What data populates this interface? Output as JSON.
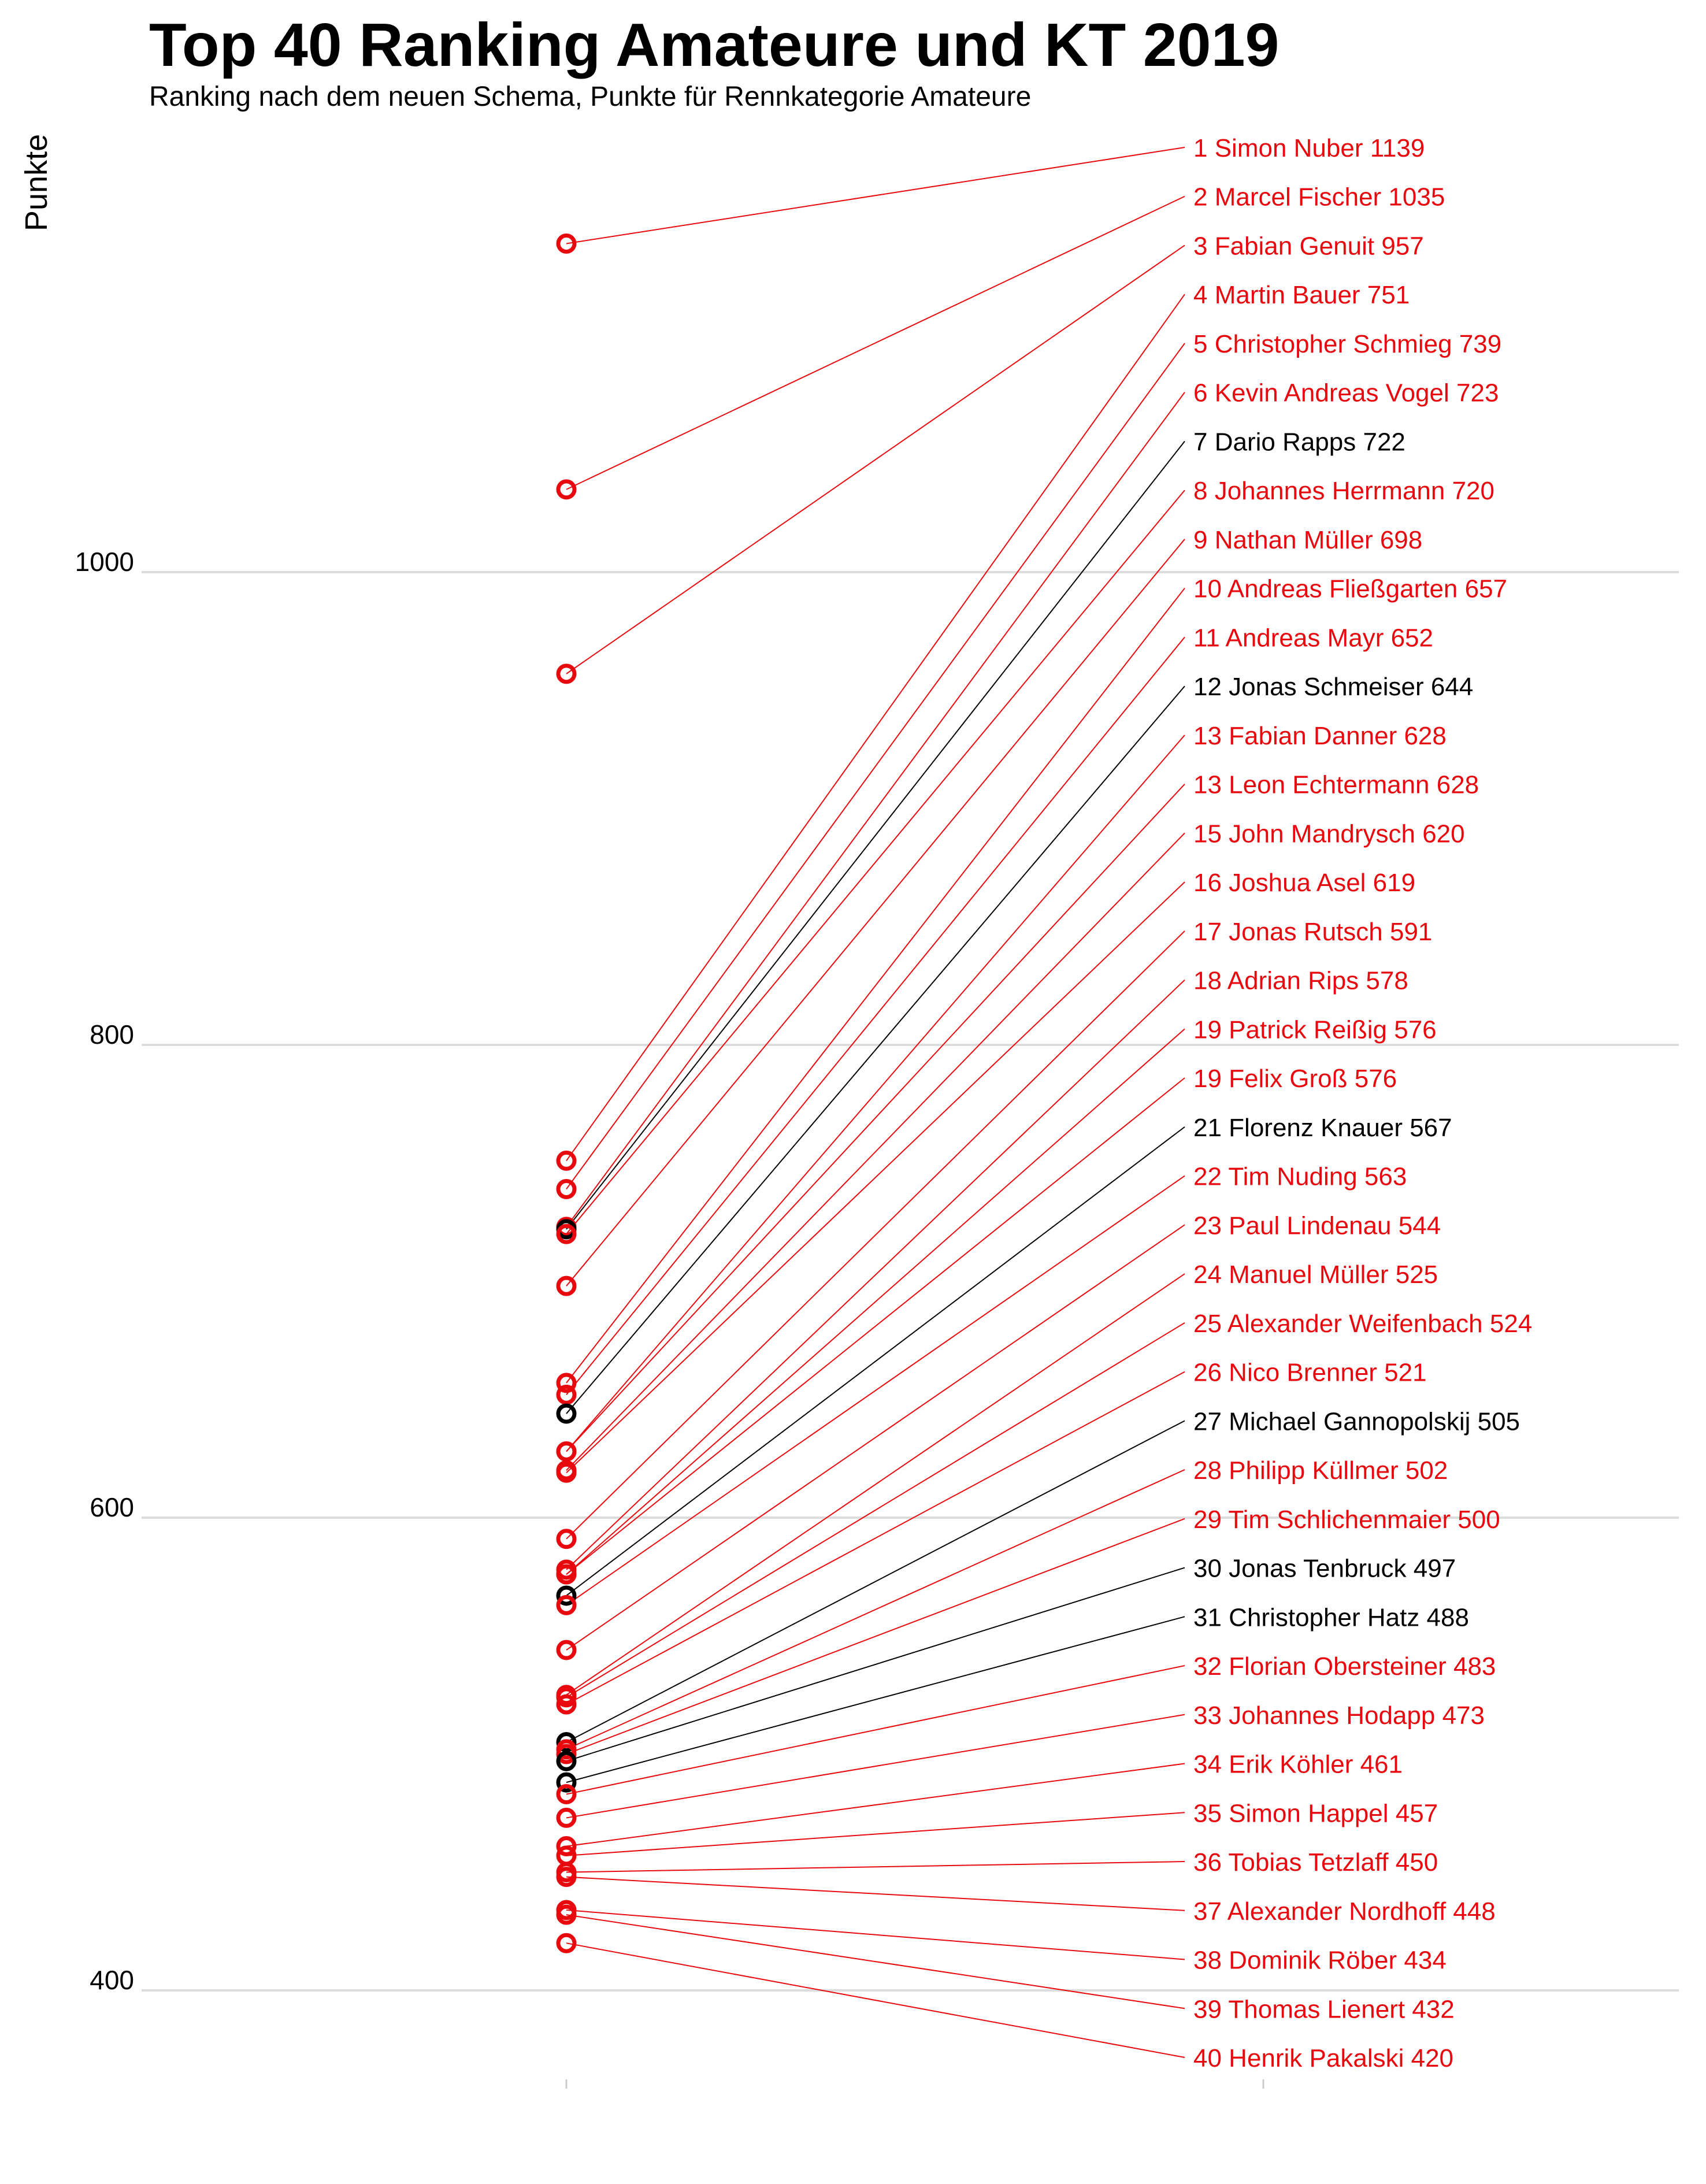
{
  "chart_data": {
    "type": "scatter",
    "title": "Top 40 Ranking Amateure und KT 2019",
    "subtitle": "Ranking nach dem neuen Schema, Punkte für Rennkategorie Amateure",
    "ylabel": "Punkte",
    "ylim": [
      360,
      1175
    ],
    "yticks": [
      400,
      600,
      800,
      1000
    ],
    "grid": true,
    "colors": {
      "red": "#e8090f",
      "black": "#000000",
      "grid": "#dcdcdc"
    },
    "points": [
      {
        "label": "1 Simon Nuber 1139",
        "value": 1139,
        "color": "red"
      },
      {
        "label": "2 Marcel Fischer 1035",
        "value": 1035,
        "color": "red"
      },
      {
        "label": "3 Fabian Genuit 957",
        "value": 957,
        "color": "red"
      },
      {
        "label": "4 Martin Bauer 751",
        "value": 751,
        "color": "red"
      },
      {
        "label": "5 Christopher Schmieg 739",
        "value": 739,
        "color": "red"
      },
      {
        "label": "6 Kevin Andreas Vogel 723",
        "value": 723,
        "color": "red"
      },
      {
        "label": "7 Dario Rapps 722",
        "value": 722,
        "color": "black"
      },
      {
        "label": "8 Johannes Herrmann 720",
        "value": 720,
        "color": "red"
      },
      {
        "label": "9 Nathan Müller 698",
        "value": 698,
        "color": "red"
      },
      {
        "label": "10 Andreas Fließgarten 657",
        "value": 657,
        "color": "red"
      },
      {
        "label": "11 Andreas Mayr 652",
        "value": 652,
        "color": "red"
      },
      {
        "label": "12 Jonas Schmeiser 644",
        "value": 644,
        "color": "black"
      },
      {
        "label": "13 Fabian Danner 628",
        "value": 628,
        "color": "red"
      },
      {
        "label": "13 Leon Echtermann 628",
        "value": 628,
        "color": "red"
      },
      {
        "label": "15 John Mandrysch 620",
        "value": 620,
        "color": "red"
      },
      {
        "label": "16 Joshua Asel 619",
        "value": 619,
        "color": "red"
      },
      {
        "label": "17 Jonas Rutsch 591",
        "value": 591,
        "color": "red"
      },
      {
        "label": "18 Adrian Rips 578",
        "value": 578,
        "color": "red"
      },
      {
        "label": "19 Patrick Reißig 576",
        "value": 576,
        "color": "red"
      },
      {
        "label": "19 Felix Groß 576",
        "value": 576,
        "color": "red"
      },
      {
        "label": "21 Florenz Knauer 567",
        "value": 567,
        "color": "black"
      },
      {
        "label": "22 Tim Nuding 563",
        "value": 563,
        "color": "red"
      },
      {
        "label": "23 Paul Lindenau 544",
        "value": 544,
        "color": "red"
      },
      {
        "label": "24 Manuel Müller 525",
        "value": 525,
        "color": "red"
      },
      {
        "label": "25 Alexander Weifenbach 524",
        "value": 524,
        "color": "red"
      },
      {
        "label": "26 Nico Brenner 521",
        "value": 521,
        "color": "red"
      },
      {
        "label": "27 Michael Gannopolskij 505",
        "value": 505,
        "color": "black"
      },
      {
        "label": "28 Philipp Küllmer 502",
        "value": 502,
        "color": "red"
      },
      {
        "label": "29 Tim Schlichenmaier 500",
        "value": 500,
        "color": "red"
      },
      {
        "label": "30 Jonas Tenbruck 497",
        "value": 497,
        "color": "black"
      },
      {
        "label": "31 Christopher Hatz 488",
        "value": 488,
        "color": "black"
      },
      {
        "label": "32 Florian Obersteiner 483",
        "value": 483,
        "color": "red"
      },
      {
        "label": "33 Johannes Hodapp 473",
        "value": 473,
        "color": "red"
      },
      {
        "label": "34 Erik Köhler 461",
        "value": 461,
        "color": "red"
      },
      {
        "label": "35 Simon Happel 457",
        "value": 457,
        "color": "red"
      },
      {
        "label": "36 Tobias Tetzlaff 450",
        "value": 450,
        "color": "red"
      },
      {
        "label": "37 Alexander Nordhoff 448",
        "value": 448,
        "color": "red"
      },
      {
        "label": "38 Dominik Röber 434",
        "value": 434,
        "color": "red"
      },
      {
        "label": "39 Thomas Lienert 432",
        "value": 432,
        "color": "red"
      },
      {
        "label": "40 Henrik Pakalski 420",
        "value": 420,
        "color": "red"
      }
    ]
  }
}
